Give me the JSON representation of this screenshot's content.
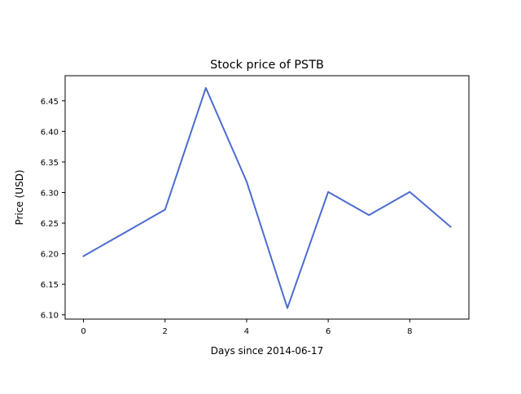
{
  "chart_data": {
    "type": "line",
    "title": "Stock price of PSTB",
    "xlabel": "Days since 2014-06-17",
    "ylabel": "Price (USD)",
    "x": [
      0,
      1,
      2,
      3,
      4,
      5,
      6,
      7,
      8,
      9
    ],
    "series": [
      {
        "values": [
          6.196,
          6.234,
          6.272,
          6.471,
          6.318,
          6.111,
          6.301,
          6.263,
          6.301,
          6.244
        ],
        "color": "#4c6ccf"
      }
    ],
    "x_ticks": [
      "0",
      "2",
      "4",
      "6",
      "8"
    ],
    "y_ticks": [
      "6.10",
      "6.15",
      "6.20",
      "6.25",
      "6.30",
      "6.35",
      "6.40",
      "6.45"
    ],
    "xlim": [
      -0.45,
      9.45
    ],
    "ylim": [
      6.093,
      6.491
    ],
    "grid": false,
    "legend": "none"
  }
}
